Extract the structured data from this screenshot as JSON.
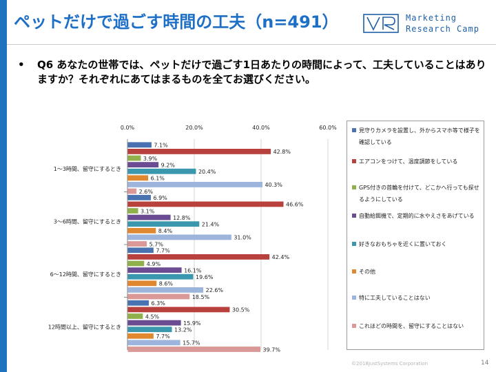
{
  "slide": {
    "title": "ペットだけで過ごす時間の工夫（n=491）",
    "logo_line1": "Marketing",
    "logo_line2": "Research Camp",
    "bullet": "•",
    "question": "Q6 あなたの世帯では、ペットだけで過ごす1日あたりの時間によって、工夫していることはありますか？それぞれにあてはまるものを全てお選びください。",
    "copyright": "©2018JustSystems Corporation",
    "page_number": "14"
  },
  "chart_data": {
    "type": "bar",
    "orientation": "horizontal",
    "title": "",
    "xlabel": "",
    "ylabel": "",
    "xlim": [
      0,
      60
    ],
    "x_ticks": [
      "0.0%",
      "20.0%",
      "40.0%",
      "60.0%"
    ],
    "x_tick_values": [
      0,
      20,
      40,
      60
    ],
    "grid": true,
    "legend_position": "right",
    "value_suffix": "%",
    "categories": [
      "1～3時間、留守にするとき",
      "3～6時間、留守にするとき",
      "6～12時間、留守にするとき",
      "12時間以上、留守にするとき"
    ],
    "series": [
      {
        "name": "見守りカメラを設置し、外からスマホ等で様子を確認している",
        "color": "#4a72b0",
        "values": [
          7.1,
          6.9,
          7.7,
          6.3
        ]
      },
      {
        "name": "エアコンをつけて、温度調節をしている",
        "color": "#b8413d",
        "values": [
          42.8,
          46.6,
          42.4,
          30.5
        ]
      },
      {
        "name": "GPS付きの首輪を付けて、どこかへ行っても探せるようにしている",
        "color": "#8fb04b",
        "values": [
          3.9,
          3.1,
          4.9,
          4.5
        ]
      },
      {
        "name": "自動給餌機で、定期的に水やえさをあげている",
        "color": "#6b4c93",
        "values": [
          9.2,
          12.8,
          16.1,
          15.9
        ]
      },
      {
        "name": "好きなおもちゃを近くに置いておく",
        "color": "#3a97ad",
        "values": [
          20.4,
          21.4,
          19.6,
          13.2
        ]
      },
      {
        "name": "その他",
        "color": "#e0882f",
        "values": [
          6.1,
          8.4,
          8.6,
          7.7
        ]
      },
      {
        "name": "特に工夫していることはない",
        "color": "#9db4dc",
        "values": [
          40.3,
          31.0,
          22.6,
          15.7
        ]
      },
      {
        "name": "これほどの時間を、留守にすることはない",
        "color": "#da9897",
        "values": [
          2.6,
          5.7,
          18.5,
          39.7
        ]
      }
    ]
  }
}
